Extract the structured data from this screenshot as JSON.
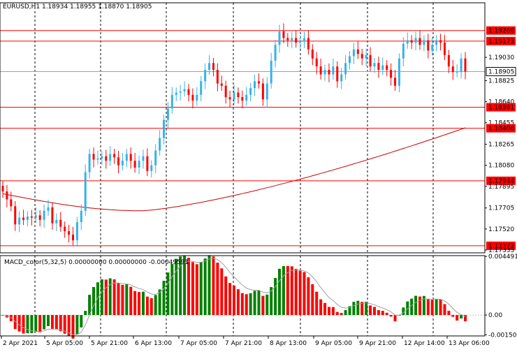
{
  "symbol_header": "EURUSD,H1  1.18934 1.18955 1.18870 1.18905",
  "macd_header": "MACD_color(5,32,5) 0.00000000 0.00000000 -0.00049591",
  "chart_data": [
    {
      "type": "candlestick",
      "symbol": "EURUSD",
      "timeframe": "H1",
      "ohlc_header": {
        "open": 1.18934,
        "high": 1.18955,
        "low": 1.1887,
        "close": 1.18905
      },
      "ylim": [
        1.1731,
        1.1951
      ],
      "price_ticks": [
        "1.19266",
        "1.19173",
        "1.19030",
        "1.18905",
        "1.18825",
        "1.18640",
        "1.18591",
        "1.18455",
        "1.18406",
        "1.18265",
        "1.18080",
        "1.17944",
        "1.17895",
        "1.17705",
        "1.17520",
        "1.17372",
        "1.17335"
      ],
      "horizontal_levels": [
        1.19266,
        1.19173,
        1.18591,
        1.18406,
        1.17944,
        1.17372
      ],
      "current_price": 1.18905,
      "x_labels": [
        "2 Apr 2021",
        "5 Apr 05:00",
        "5 Apr 21:00",
        "6 Apr 13:00",
        "7 Apr 05:00",
        "7 Apr 21:00",
        "8 Apr 13:00",
        "9 Apr 05:00",
        "9 Apr 21:00",
        "12 Apr 14:00",
        "13 Apr 06:00"
      ],
      "candle_count": 113,
      "closes": [
        1.1785,
        1.1778,
        1.1772,
        1.1756,
        1.1762,
        1.176,
        1.1763,
        1.1762,
        1.1764,
        1.176,
        1.1768,
        1.1771,
        1.1757,
        1.176,
        1.1754,
        1.175,
        1.1747,
        1.1742,
        1.1758,
        1.1768,
        1.1802,
        1.1818,
        1.1813,
        1.1814,
        1.1816,
        1.1812,
        1.1818,
        1.1815,
        1.1808,
        1.1812,
        1.1818,
        1.1812,
        1.1806,
        1.1812,
        1.1816,
        1.1803,
        1.1808,
        1.1821,
        1.1832,
        1.1848,
        1.1858,
        1.187,
        1.1872,
        1.1873,
        1.1875,
        1.187,
        1.1865,
        1.187,
        1.1882,
        1.1892,
        1.1898,
        1.1892,
        1.188,
        1.1878,
        1.1868,
        1.1866,
        1.1872,
        1.1868,
        1.1865,
        1.187,
        1.1876,
        1.1882,
        1.188,
        1.1866,
        1.188,
        1.19,
        1.1914,
        1.1926,
        1.192,
        1.1918,
        1.192,
        1.1916,
        1.1918,
        1.192,
        1.191,
        1.1902,
        1.1895,
        1.1888,
        1.1892,
        1.1888,
        1.1895,
        1.1882,
        1.1888,
        1.1898,
        1.1904,
        1.191,
        1.1906,
        1.1902,
        1.1905,
        1.1895,
        1.1898,
        1.1892,
        1.1896,
        1.1892,
        1.1885,
        1.1878,
        1.1902,
        1.1915,
        1.1918,
        1.1916,
        1.192,
        1.1914,
        1.1918,
        1.1909,
        1.1914,
        1.1918,
        1.1916,
        1.1905,
        1.1895,
        1.189,
        1.189,
        1.1902,
        1.18905
      ],
      "moving_average": {
        "color": "#cc0000",
        "start": 1.1783,
        "dip": 1.1768,
        "end": 1.1841
      },
      "colors": {
        "bull": "#35b2ea",
        "bear": "#ff0000",
        "level": "#ff0000",
        "current": "#9aa0a6",
        "ma": "#cc0000"
      }
    },
    {
      "type": "bar",
      "indicator": "MACD_color",
      "params": [
        5,
        32,
        5
      ],
      "ylim": [
        -0.0016,
        0.00455
      ],
      "y_ticks": [
        "0.0044913",
        "0.00",
        "-0.0015078"
      ],
      "colors": {
        "positive": "#ff0000",
        "negative": "#008000",
        "signal": "#a0a0a0"
      }
    }
  ]
}
